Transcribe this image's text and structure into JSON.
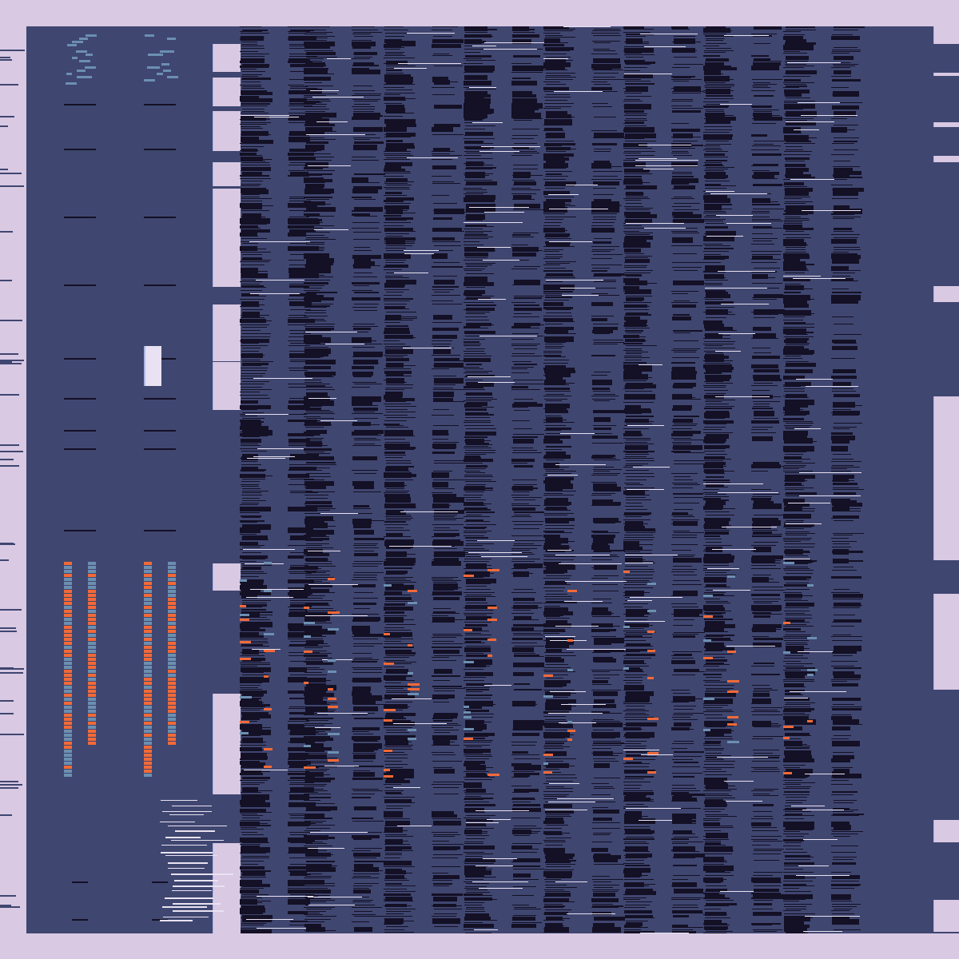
{
  "app": {
    "title": "",
    "status": ""
  },
  "colors": {
    "page_background": "#d9c9e3",
    "canvas_background": "#3f4670",
    "dense_bar": "#141025",
    "accent_orange": "#f26a38",
    "accent_teal": "#6c8fb1",
    "highlight_white": "#e9e2f2",
    "highlight_blue": "#a9b6e6"
  },
  "glitch_view": {
    "icon": "corrupted-render-icon",
    "description_visible": false,
    "lanes": [
      {
        "id": "lane-1",
        "kind": "sparse",
        "icon": "sparse-lane-icon"
      },
      {
        "id": "lane-2",
        "kind": "sparse",
        "icon": "sparse-lane-icon"
      },
      {
        "id": "lane-3",
        "kind": "panel-column",
        "icon": "panel-column-icon"
      },
      {
        "id": "lane-4",
        "kind": "dense",
        "icon": "dense-lane-icon"
      },
      {
        "id": "lane-5",
        "kind": "dense",
        "icon": "dense-lane-icon"
      },
      {
        "id": "lane-6",
        "kind": "dense",
        "icon": "dense-lane-icon"
      },
      {
        "id": "lane-7",
        "kind": "dense",
        "icon": "dense-lane-icon"
      },
      {
        "id": "lane-8",
        "kind": "dense",
        "icon": "dense-lane-icon"
      },
      {
        "id": "lane-9",
        "kind": "dense",
        "icon": "dense-lane-icon"
      },
      {
        "id": "lane-10",
        "kind": "dense",
        "icon": "dense-lane-icon"
      },
      {
        "id": "lane-11",
        "kind": "dense",
        "icon": "dense-lane-icon"
      }
    ]
  }
}
